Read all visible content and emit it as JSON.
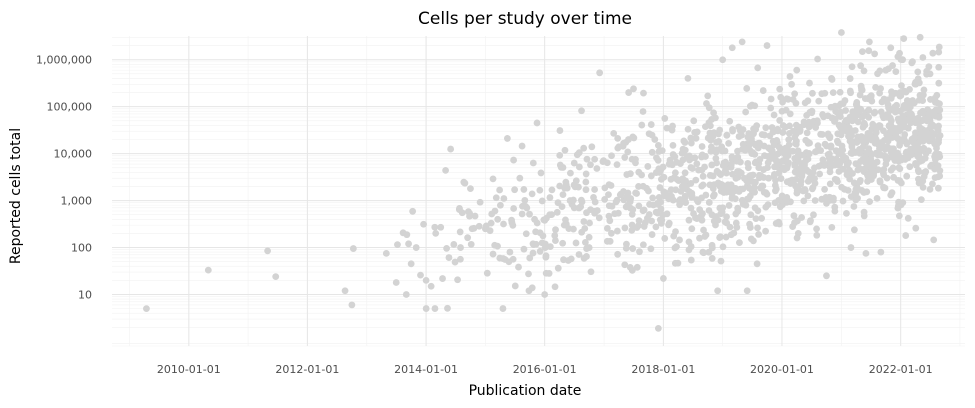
{
  "chart_data": {
    "type": "scatter",
    "title": "Cells per study over time",
    "xlabel": "Publication date",
    "ylabel": "Reported cells total",
    "x_scale": "date",
    "y_scale": "log10",
    "xlim": [
      "2008-09-15",
      "2023-02-01"
    ],
    "ylim": [
      0.8,
      3200000
    ],
    "x_ticks": [
      "2010-01-01",
      "2012-01-01",
      "2014-01-01",
      "2016-01-01",
      "2018-01-01",
      "2020-01-01",
      "2022-01-01"
    ],
    "y_ticks": [
      10,
      100,
      1000,
      10000,
      100000,
      1000000
    ],
    "y_tick_labels": [
      "10",
      "100",
      "1,000",
      "10,000",
      "100,000",
      "1,000,000"
    ],
    "grid": true,
    "point_color": "#d3d3d3",
    "point_count_approx": 1500,
    "points": [
      [
        "2009-04-15",
        5
      ],
      [
        "2010-05-01",
        33
      ],
      [
        "2011-05-01",
        85
      ],
      [
        "2011-06-20",
        24
      ],
      [
        "2012-08-20",
        12
      ],
      [
        "2012-10-01",
        6
      ],
      [
        "2012-10-10",
        95
      ],
      [
        "2013-05-01",
        75
      ],
      [
        "2013-07-01",
        18
      ],
      [
        "2013-09-01",
        10
      ],
      [
        "2013-09-15",
        120
      ],
      [
        "2013-10-01",
        45
      ],
      [
        "2013-11-01",
        100
      ],
      [
        "2014-01-01",
        20
      ],
      [
        "2014-02-01",
        15
      ],
      [
        "2014-03-01",
        200
      ],
      [
        "2014-04-01",
        270
      ],
      [
        "2014-05-01",
        4400
      ],
      [
        "2014-06-01",
        12500
      ],
      [
        "2014-08-01",
        100
      ],
      [
        "2014-10-01",
        1800
      ],
      [
        "2015-01-01",
        250
      ],
      [
        "2015-03-01",
        600
      ],
      [
        "2015-06-01",
        80
      ],
      [
        "2015-08-01",
        3000
      ],
      [
        "2015-08-15",
        14500
      ],
      [
        "2015-10-01",
        60
      ],
      [
        "2015-11-15",
        45000
      ],
      [
        "2016-01-01",
        10
      ],
      [
        "2016-02-01",
        500
      ],
      [
        "2016-05-01",
        300
      ],
      [
        "2016-08-01",
        10500
      ],
      [
        "2016-10-01",
        100
      ],
      [
        "2017-03-01",
        27000
      ],
      [
        "2017-06-01",
        200000
      ],
      [
        "2017-07-01",
        240000
      ],
      [
        "2017-08-01",
        2000
      ],
      [
        "2017-10-01",
        1600
      ],
      [
        "2017-12-01",
        1.9
      ],
      [
        "2018-01-01",
        22
      ],
      [
        "2018-03-01",
        15000
      ],
      [
        "2018-06-01",
        400000
      ],
      [
        "2018-09-01",
        80
      ],
      [
        "2018-10-01",
        170000
      ],
      [
        "2018-12-01",
        12
      ],
      [
        "2019-01-01",
        1000000
      ],
      [
        "2019-03-01",
        1800000
      ],
      [
        "2019-05-01",
        2400000
      ],
      [
        "2019-06-01",
        12
      ],
      [
        "2019-08-01",
        45
      ],
      [
        "2019-10-01",
        2000000
      ],
      [
        "2020-01-01",
        80000
      ],
      [
        "2020-04-01",
        600000
      ],
      [
        "2020-06-01",
        8000
      ],
      [
        "2020-08-01",
        250
      ],
      [
        "2020-10-01",
        25
      ],
      [
        "2020-11-01",
        400000
      ],
      [
        "2021-01-01",
        3800000
      ],
      [
        "2021-03-01",
        100
      ],
      [
        "2021-06-01",
        75
      ],
      [
        "2021-09-01",
        80
      ],
      [
        "2021-11-01",
        1800000
      ],
      [
        "2022-02-01",
        180
      ],
      [
        "2022-05-01",
        3000000
      ],
      [
        "2022-06-01",
        8000
      ],
      [
        "2022-07-01",
        500000
      ],
      [
        "2022-08-01",
        6000
      ]
    ]
  }
}
